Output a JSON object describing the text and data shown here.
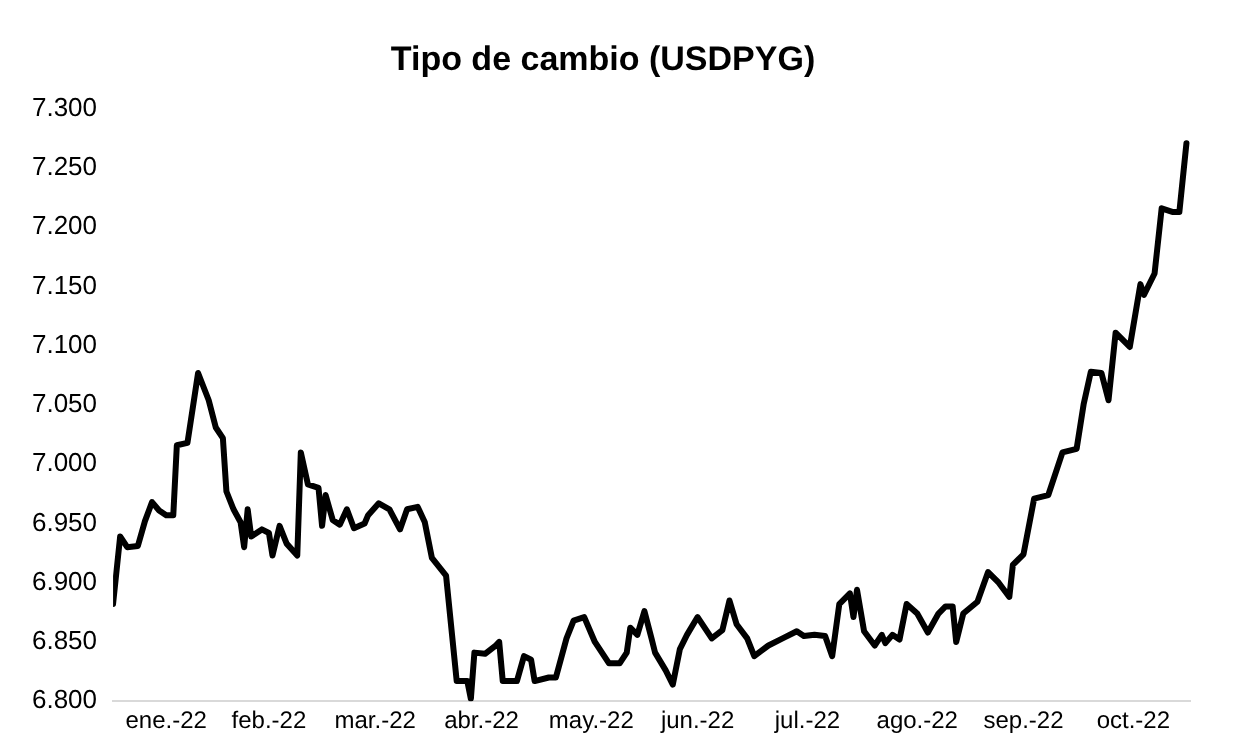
{
  "chart_data": {
    "type": "line",
    "title": "Tipo de cambio (USDPYG)",
    "x": [
      "2022-01-01",
      "2022-01-03",
      "2022-01-05",
      "2022-01-08",
      "2022-01-10",
      "2022-01-12",
      "2022-01-14",
      "2022-01-16",
      "2022-01-18",
      "2022-01-19",
      "2022-01-22",
      "2022-01-25",
      "2022-01-28",
      "2022-01-30",
      "2022-02-01",
      "2022-02-02",
      "2022-02-04",
      "2022-02-06",
      "2022-02-07",
      "2022-02-08",
      "2022-02-09",
      "2022-02-12",
      "2022-02-14",
      "2022-02-15",
      "2022-02-17",
      "2022-02-19",
      "2022-02-22",
      "2022-02-23",
      "2022-02-25",
      "2022-02-28",
      "2022-03-01",
      "2022-03-02",
      "2022-03-04",
      "2022-03-06",
      "2022-03-08",
      "2022-03-10",
      "2022-03-13",
      "2022-03-14",
      "2022-03-17",
      "2022-03-20",
      "2022-03-23",
      "2022-03-25",
      "2022-03-28",
      "2022-03-30",
      "2022-04-01",
      "2022-04-05",
      "2022-04-08",
      "2022-04-11",
      "2022-04-12",
      "2022-04-13",
      "2022-04-16",
      "2022-04-19",
      "2022-04-20",
      "2022-04-21",
      "2022-04-25",
      "2022-04-27",
      "2022-04-29",
      "2022-04-30",
      "2022-05-04",
      "2022-05-06",
      "2022-05-09",
      "2022-05-11",
      "2022-05-14",
      "2022-05-17",
      "2022-05-21",
      "2022-05-24",
      "2022-05-26",
      "2022-05-27",
      "2022-05-29",
      "2022-05-31",
      "2022-06-02",
      "2022-06-03",
      "2022-06-06",
      "2022-06-08",
      "2022-06-10",
      "2022-06-12",
      "2022-06-15",
      "2022-06-19",
      "2022-06-22",
      "2022-06-24",
      "2022-06-26",
      "2022-06-29",
      "2022-07-01",
      "2022-07-05",
      "2022-07-09",
      "2022-07-13",
      "2022-07-15",
      "2022-07-18",
      "2022-07-21",
      "2022-07-23",
      "2022-07-25",
      "2022-07-28",
      "2022-07-29",
      "2022-07-30",
      "2022-08-01",
      "2022-08-04",
      "2022-08-06",
      "2022-08-07",
      "2022-08-09",
      "2022-08-11",
      "2022-08-13",
      "2022-08-16",
      "2022-08-19",
      "2022-08-22",
      "2022-08-24",
      "2022-08-26",
      "2022-08-27",
      "2022-08-29",
      "2022-09-02",
      "2022-09-05",
      "2022-09-08",
      "2022-09-11",
      "2022-09-12",
      "2022-09-15",
      "2022-09-18",
      "2022-09-22",
      "2022-09-26",
      "2022-09-30",
      "2022-10-02",
      "2022-10-04",
      "2022-10-07",
      "2022-10-09",
      "2022-10-11",
      "2022-10-15",
      "2022-10-18",
      "2022-10-19",
      "2022-10-22",
      "2022-10-24",
      "2022-10-27",
      "2022-10-29",
      "2022-10-31"
    ],
    "series": [
      {
        "color": "#000000",
        "values": [
          6882,
          6939,
          6930,
          6931,
          6952,
          6968,
          6961,
          6957,
          6957,
          7016,
          7018,
          7077,
          7054,
          7031,
          7022,
          6977,
          6962,
          6951,
          6930,
          6962,
          6939,
          6945,
          6942,
          6923,
          6948,
          6933,
          6923,
          7010,
          6983,
          6980,
          6948,
          6974,
          6953,
          6949,
          6962,
          6946,
          6950,
          6957,
          6967,
          6962,
          6945,
          6962,
          6964,
          6951,
          6921,
          6906,
          6817,
          6817,
          6802,
          6841,
          6840,
          6847,
          6850,
          6817,
          6817,
          6838,
          6835,
          6817,
          6820,
          6820,
          6853,
          6868,
          6871,
          6850,
          6832,
          6832,
          6841,
          6862,
          6856,
          6876,
          6853,
          6841,
          6826,
          6814,
          6844,
          6856,
          6871,
          6853,
          6860,
          6885,
          6865,
          6853,
          6838,
          6847,
          6853,
          6859,
          6855,
          6856,
          6855,
          6838,
          6882,
          6891,
          6871,
          6894,
          6859,
          6847,
          6856,
          6849,
          6856,
          6852,
          6882,
          6874,
          6858,
          6874,
          6880,
          6880,
          6850,
          6874,
          6884,
          6909,
          6900,
          6888,
          6915,
          6924,
          6971,
          6974,
          7010,
          7013,
          7051,
          7078,
          7077,
          7054,
          7111,
          7099,
          7152,
          7143,
          7161,
          7216,
          7213,
          7213,
          7271
        ]
      }
    ],
    "xlim": [
      "2022-01-01",
      "2022-11-01"
    ],
    "xticks": [
      {
        "value": "2022-01-16",
        "label": "ene.-22"
      },
      {
        "value": "2022-02-14",
        "label": "feb.-22"
      },
      {
        "value": "2022-03-16",
        "label": "mar.-22"
      },
      {
        "value": "2022-04-15",
        "label": "abr.-22"
      },
      {
        "value": "2022-05-16",
        "label": "may.-22"
      },
      {
        "value": "2022-06-15",
        "label": "jun.-22"
      },
      {
        "value": "2022-07-16",
        "label": "jul.-22"
      },
      {
        "value": "2022-08-16",
        "label": "ago.-22"
      },
      {
        "value": "2022-09-15",
        "label": "sep.-22"
      },
      {
        "value": "2022-10-16",
        "label": "oct.-22"
      }
    ],
    "ylim": [
      6800,
      7300
    ],
    "yticks": [
      {
        "value": 6800,
        "label": "6.800"
      },
      {
        "value": 6850,
        "label": "6.850"
      },
      {
        "value": 6900,
        "label": "6.900"
      },
      {
        "value": 6950,
        "label": "6.950"
      },
      {
        "value": 7000,
        "label": "7.000"
      },
      {
        "value": 7050,
        "label": "7.050"
      },
      {
        "value": 7100,
        "label": "7.100"
      },
      {
        "value": 7150,
        "label": "7.150"
      },
      {
        "value": 7200,
        "label": "7.200"
      },
      {
        "value": 7250,
        "label": "7.250"
      },
      {
        "value": 7300,
        "label": "7.300"
      }
    ],
    "grid": false,
    "legend": false,
    "marker": "none",
    "line_style": "solid"
  }
}
